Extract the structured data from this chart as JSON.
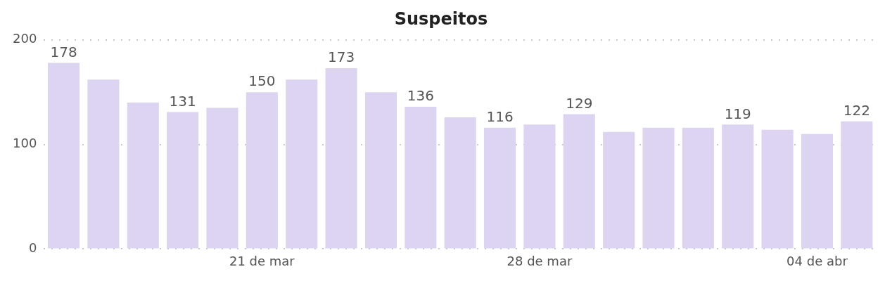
{
  "chart_data": {
    "type": "bar",
    "title": "Suspeitos",
    "categories": [
      null,
      null,
      null,
      null,
      null,
      "21 de mar",
      null,
      null,
      null,
      null,
      null,
      null,
      "28 de mar",
      null,
      null,
      null,
      null,
      null,
      null,
      "04 de abr",
      null
    ],
    "values": [
      178,
      162,
      140,
      131,
      135,
      150,
      162,
      173,
      150,
      136,
      126,
      116,
      119,
      129,
      112,
      116,
      116,
      119,
      114,
      110,
      122
    ],
    "value_labels": [
      "178",
      null,
      null,
      "131",
      null,
      "150",
      null,
      "173",
      null,
      "136",
      null,
      "116",
      null,
      "129",
      null,
      null,
      null,
      "119",
      null,
      null,
      "122"
    ],
    "color": "#dcd4f1",
    "ylim": [
      0,
      200
    ],
    "yticks": [
      0,
      100,
      200
    ],
    "grid": "y",
    "legend": false
  }
}
